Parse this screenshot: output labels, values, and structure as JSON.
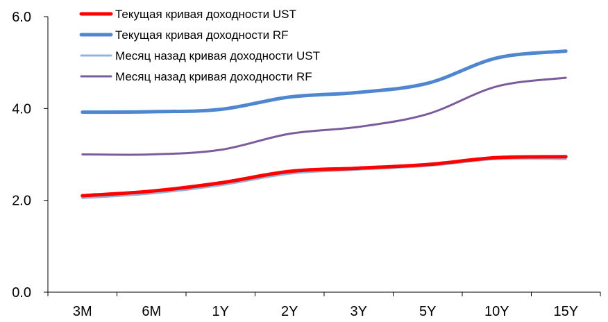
{
  "chart_data": {
    "type": "line",
    "title": "",
    "xlabel": "",
    "ylabel": "",
    "categories": [
      "3M",
      "6M",
      "1Y",
      "2Y",
      "3Y",
      "5Y",
      "10Y",
      "15Y"
    ],
    "ylim": [
      0,
      6.0
    ],
    "yticks": [
      0.0,
      2.0,
      4.0,
      6.0
    ],
    "ytick_labels": [
      "0.0",
      "2.0",
      "4.0",
      "6.0"
    ],
    "grid": false,
    "legend_position": "top-left",
    "series": [
      {
        "name": "Текущая кривая доходности UST",
        "color": "#ff0000",
        "width": "thick",
        "values": [
          2.1,
          2.2,
          2.38,
          2.63,
          2.7,
          2.78,
          2.93,
          2.95
        ]
      },
      {
        "name": "Текущая кривая доходности RF",
        "color": "#4f86d0",
        "width": "thick",
        "values": [
          3.92,
          3.93,
          3.98,
          4.25,
          4.35,
          4.55,
          5.1,
          5.25
        ]
      },
      {
        "name": "Месяц назад кривая доходности UST",
        "color": "#95b3d7",
        "width": "thin",
        "values": [
          2.05,
          2.15,
          2.33,
          2.58,
          2.67,
          2.75,
          2.9,
          2.9
        ]
      },
      {
        "name": "Месяц назад кривая доходности RF",
        "color": "#7a5c9e",
        "width": "thin",
        "values": [
          3.0,
          3.0,
          3.1,
          3.45,
          3.6,
          3.88,
          4.48,
          4.67
        ]
      }
    ]
  }
}
